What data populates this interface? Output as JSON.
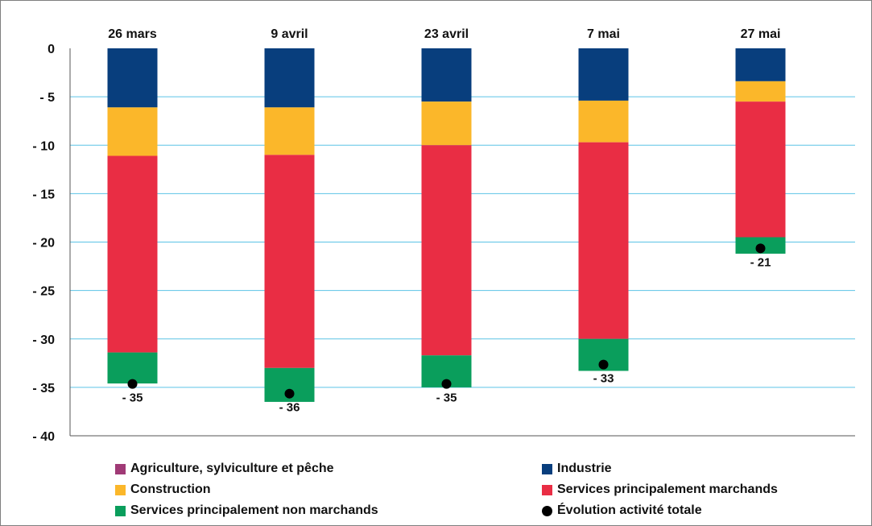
{
  "chart_data": {
    "type": "bar",
    "stacked": true,
    "categories": [
      "26 mars",
      "9 avril",
      "23 avril",
      "7 mai",
      "27 mai"
    ],
    "series": [
      {
        "name": "Agriculture, sylviculture et pêche",
        "color": "#a03a76",
        "values": [
          0,
          0,
          0,
          0,
          0
        ]
      },
      {
        "name": "Industrie",
        "color": "#083e7d",
        "values": [
          -6.1,
          -6.1,
          -5.5,
          -5.4,
          -3.4
        ]
      },
      {
        "name": "Construction",
        "color": "#fbb72a",
        "values": [
          -5.0,
          -4.9,
          -4.5,
          -4.3,
          -2.1
        ]
      },
      {
        "name": "Services principalement marchands",
        "color": "#e92d44",
        "values": [
          -20.3,
          -22.0,
          -21.7,
          -20.3,
          -14.0
        ]
      },
      {
        "name": "Services principalement non marchands",
        "color": "#0a9e5c",
        "values": [
          -3.2,
          -3.5,
          -3.3,
          -3.3,
          -1.7
        ]
      }
    ],
    "total": {
      "name": "Évolution activité totale",
      "values": [
        -35,
        -36,
        -35,
        -33,
        -21
      ],
      "labels": [
        "- 35",
        "- 36",
        "- 35",
        "- 33",
        "- 21"
      ]
    },
    "yticks": [
      0,
      -5,
      -10,
      -15,
      -20,
      -25,
      -30,
      -35,
      -40
    ],
    "ytick_labels": [
      "0",
      "- 5",
      "- 10",
      "- 15",
      "- 20",
      "- 25",
      "- 30",
      "- 35",
      "- 40"
    ],
    "ylim": [
      -40,
      0
    ],
    "grid": true,
    "grid_color": "#5bc3e6",
    "legend_position": "bottom"
  }
}
